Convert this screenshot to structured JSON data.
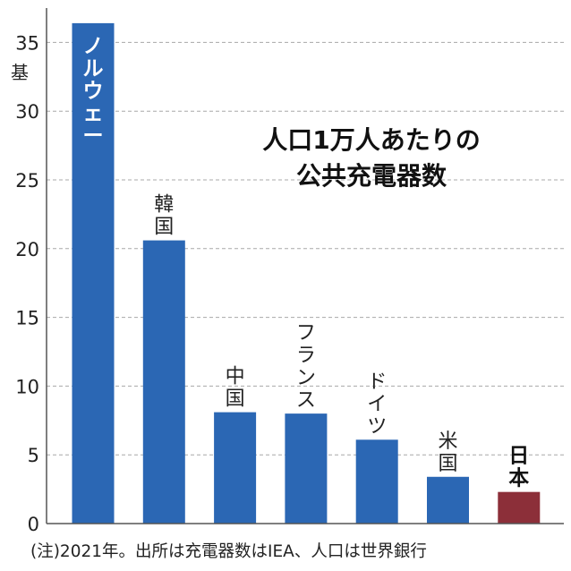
{
  "chart_data": {
    "type": "bar",
    "title_lines": [
      "人口1万人あたりの",
      "公共充電器数"
    ],
    "unit": "基",
    "categories": [
      "ノルウェー",
      "韓国",
      "中国",
      "フランス",
      "ドイツ",
      "米国",
      "日本"
    ],
    "values": [
      36.4,
      20.6,
      8.1,
      8.0,
      6.1,
      3.4,
      2.3
    ],
    "ylim": [
      0,
      37.5
    ],
    "yticks": [
      0,
      5,
      10,
      15,
      20,
      25,
      30,
      35
    ],
    "grid": true,
    "colors": {
      "default": "#2b67b4",
      "highlight": "#8c2f39",
      "grid": "#a8a8a8",
      "axis": "#555555"
    },
    "highlight_category": "日本",
    "note": "(注)2021年。出所は充電器数はIEA、人口は世界銀行"
  }
}
